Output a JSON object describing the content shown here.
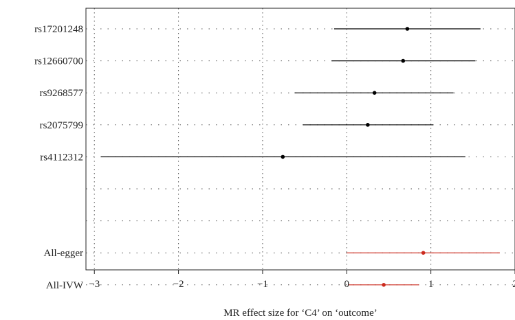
{
  "chart_data": {
    "type": "forest",
    "xlabel": "MR effect size for ‘C4’ on ‘outcome’",
    "xlim": [
      -3.1,
      2.0
    ],
    "xticks": [
      -3,
      -2,
      -1,
      0,
      1,
      2
    ],
    "xtick_labels": [
      "−3",
      "−2",
      "−1",
      "0",
      "1",
      "2"
    ],
    "grid": "dotted",
    "rows": [
      {
        "label": "rs17201248",
        "estimate": 0.72,
        "lower": -0.15,
        "upper": 1.59,
        "color": "#000000"
      },
      {
        "label": "rs12660700",
        "estimate": 0.67,
        "lower": -0.18,
        "upper": 1.53,
        "color": "#000000"
      },
      {
        "label": "rs9268577",
        "estimate": 0.33,
        "lower": -0.62,
        "upper": 1.27,
        "color": "#000000"
      },
      {
        "label": "rs2075799",
        "estimate": 0.25,
        "lower": -0.52,
        "upper": 1.03,
        "color": "#000000"
      },
      {
        "label": "rs4112312",
        "estimate": -0.76,
        "lower": -2.92,
        "upper": 1.41,
        "color": "#000000"
      },
      {
        "label": "",
        "estimate": null,
        "lower": null,
        "upper": null,
        "color": "#000000"
      },
      {
        "label": "",
        "estimate": null,
        "lower": null,
        "upper": null,
        "color": "#000000"
      },
      {
        "label": "All-egger",
        "estimate": 0.91,
        "lower": 0.0,
        "upper": 1.82,
        "color": "#cc2a1e"
      },
      {
        "label": "All-IVW",
        "estimate": 0.44,
        "lower": 0.02,
        "upper": 0.86,
        "color": "#cc2a1e"
      }
    ]
  }
}
